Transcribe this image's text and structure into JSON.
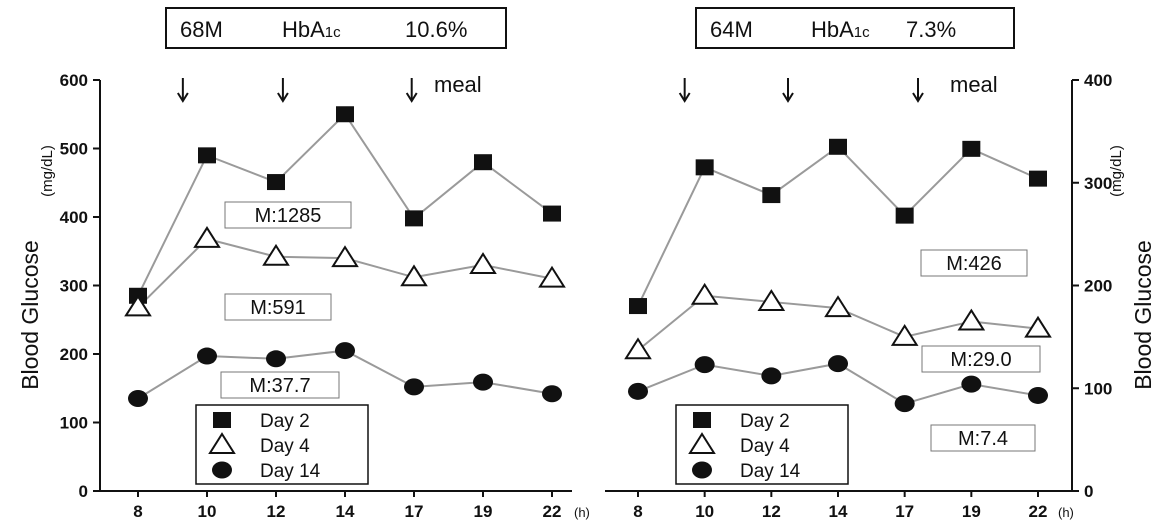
{
  "chart_data": [
    {
      "type": "line",
      "title": "68M　HbA1c　10.6%",
      "title_parts": {
        "subject": "68M",
        "hba_main": "HbA",
        "hba_sub": "1c",
        "hba_value": "10.6%"
      },
      "ylabel": "Blood Glucose",
      "ylabel_unit": "(mg/dL)",
      "y_axis_side": "left",
      "x_unit": "(h)",
      "categories": [
        "8",
        "10",
        "12",
        "14",
        "17",
        "19",
        "22"
      ],
      "ylim": [
        0,
        600
      ],
      "yticks": [
        0,
        100,
        200,
        300,
        400,
        500,
        600
      ],
      "meal_label": "meal",
      "meal_times_h": [
        9.3,
        12.2,
        16.9
      ],
      "series": [
        {
          "name": "Day 2",
          "marker": "square",
          "values": [
            285,
            490,
            451,
            550,
            398,
            480,
            405
          ]
        },
        {
          "name": "Day 4",
          "marker": "triangle",
          "values": [
            268,
            368,
            342,
            340,
            312,
            330,
            310
          ]
        },
        {
          "name": "Day 14",
          "marker": "circle",
          "values": [
            135,
            197,
            193,
            205,
            152,
            159,
            142
          ]
        }
      ],
      "annotations": [
        "M:1285",
        "M:591",
        "M:37.7"
      ],
      "legend": [
        "Day  2",
        "Day  4",
        "Day 14"
      ],
      "grid": false
    },
    {
      "type": "line",
      "title": "64M　HbA1c　7.3%",
      "title_parts": {
        "subject": "64M",
        "hba_main": "HbA",
        "hba_sub": "1c",
        "hba_value": "7.3%"
      },
      "ylabel": "Blood Glucose",
      "ylabel_unit": "(mg/dL)",
      "y_axis_side": "right",
      "x_unit": "(h)",
      "categories": [
        "8",
        "10",
        "12",
        "14",
        "17",
        "19",
        "22"
      ],
      "ylim": [
        0,
        400
      ],
      "yticks": [
        0,
        100,
        200,
        300,
        400
      ],
      "meal_label": "meal",
      "meal_times_h": [
        9.4,
        12.5,
        17.4
      ],
      "series": [
        {
          "name": "Day 2",
          "marker": "square",
          "values": [
            180,
            315,
            288,
            335,
            268,
            333,
            304
          ]
        },
        {
          "name": "Day 4",
          "marker": "triangle",
          "values": [
            137,
            190,
            184,
            178,
            150,
            165,
            158
          ]
        },
        {
          "name": "Day 14",
          "marker": "circle",
          "values": [
            97,
            123,
            112,
            124,
            85,
            104,
            93
          ]
        }
      ],
      "annotations": [
        "M:426",
        "M:29.0",
        "M:7.4"
      ],
      "legend": [
        "Day  2",
        "Day  4",
        "Day 14"
      ],
      "grid": false
    }
  ]
}
